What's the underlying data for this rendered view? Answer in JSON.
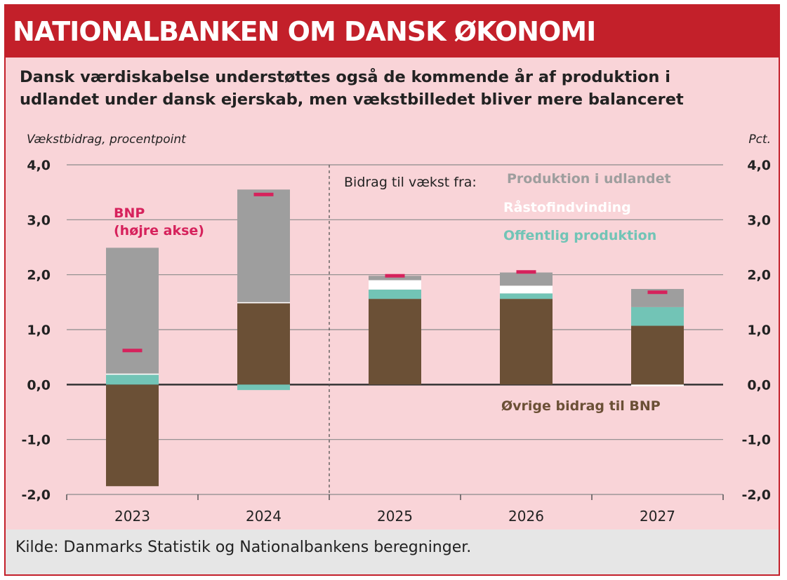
{
  "header": {
    "banner": "NATIONALBANKEN OM DANSK ØKONOMI",
    "subtitle_line1": "Dansk værdiskabelse understøttes også de kommende år af produktion i",
    "subtitle_line2": "udlandet under dansk ejerskab, men vækstbilledet bliver mere balanceret"
  },
  "footer": {
    "source": "Kilde:  Danmarks Statistik og Nationalbankens beregninger."
  },
  "colors": {
    "banner": "#c3202a",
    "background": "#f9d4d8",
    "produktion_udland": "#9e9e9e",
    "raastof": "#ffffff",
    "offentlig": "#72c4b6",
    "oevrige": "#6b5036",
    "bnp": "#d6225c"
  },
  "chart_data": {
    "type": "bar",
    "stacked": true,
    "categories": [
      "2023",
      "2024",
      "2025",
      "2026",
      "2027"
    ],
    "ylabel_left": "Vækstbidrag, procentpoint",
    "ylabel_right": "Pct.",
    "ylim": [
      -2.0,
      4.0
    ],
    "yticks": [
      "4,0",
      "3,0",
      "2,0",
      "1,0",
      "0,0",
      "-1,0",
      "-2,0"
    ],
    "yticks_right": [
      "4,0",
      "3,0",
      "2,0",
      "1,0",
      "0,0",
      "-1,0",
      "-2,0"
    ],
    "grid": true,
    "divider_after": "2024",
    "legend_title": "Bidrag til vækst fra:",
    "series": [
      {
        "name": "Øvrige bidrag til BNP",
        "key": "oevrige",
        "values": [
          -1.85,
          1.48,
          1.56,
          1.56,
          1.07
        ]
      },
      {
        "name": "Offentlig produktion",
        "key": "offentlig",
        "values": [
          0.18,
          -0.1,
          0.17,
          0.1,
          0.34
        ]
      },
      {
        "name": "Råstofindvinding",
        "key": "raastof",
        "values": [
          0.02,
          0.02,
          0.17,
          0.14,
          -0.03
        ]
      },
      {
        "name": "Produktion i udlandet",
        "key": "produktion_udland",
        "values": [
          2.29,
          2.05,
          0.08,
          0.24,
          0.33
        ]
      }
    ],
    "bnp": {
      "name": "BNP",
      "annotation_line1": "BNP",
      "annotation_line2": "(højre akse)",
      "values": [
        0.62,
        3.46,
        1.98,
        2.05,
        1.68
      ]
    }
  }
}
